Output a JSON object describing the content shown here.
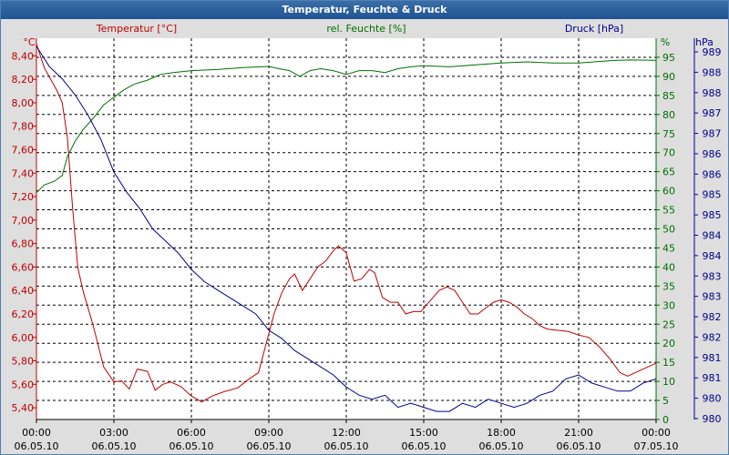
{
  "window": {
    "title": "Temperatur, Feuchte & Druck"
  },
  "colors": {
    "temperature": "#c00000",
    "humidity": "#007000",
    "pressure": "#000090",
    "grid": "#000000",
    "titlebar": "#2a5f9e"
  },
  "chart_data": {
    "type": "line",
    "title": "Temperatur, Feuchte & Druck",
    "grid": true,
    "x": {
      "start": "06.05.10 00:00",
      "end": "07.05.10 00:00",
      "range_hours": [
        0,
        24
      ],
      "tick_hours": [
        0,
        3,
        6,
        9,
        12,
        15,
        18,
        21,
        24
      ],
      "tick_times": [
        "00:00",
        "03:00",
        "06:00",
        "09:00",
        "12:00",
        "15:00",
        "18:00",
        "21:00",
        "00:00"
      ],
      "tick_dates": [
        "06.05.10",
        "06.05.10",
        "06.05.10",
        "06.05.10",
        "06.05.10",
        "06.05.10",
        "06.05.10",
        "06.05.10",
        "07.05.10"
      ]
    },
    "axes": {
      "temperature": {
        "label": "Temperatur [°C]",
        "unit": "°C",
        "range": [
          5.3,
          8.55
        ],
        "ticks": [
          "8,40",
          "8,20",
          "8,00",
          "7,80",
          "7,60",
          "7,40",
          "7,20",
          "7,00",
          "6,80",
          "6,60",
          "6,40",
          "6,20",
          "6,00",
          "5,80",
          "5,60",
          "5,40"
        ]
      },
      "humidity": {
        "label": "rel. Feuchte [%]",
        "unit": "%",
        "range": [
          0,
          100
        ],
        "ticks": [
          "95",
          "90",
          "85",
          "80",
          "75",
          "70",
          "65",
          "60",
          "55",
          "50",
          "45",
          "40",
          "35",
          "30",
          "25",
          "20",
          "15",
          "10",
          "5",
          "0"
        ]
      },
      "pressure": {
        "label": "Druck [hPa]",
        "unit": "hPa",
        "range": [
          979.8,
          989.2
        ],
        "ticks": [
          "989",
          "988",
          "988",
          "987",
          "987",
          "986",
          "986",
          "985",
          "985",
          "984",
          "984",
          "983",
          "983",
          "982",
          "982",
          "981",
          "981",
          "980",
          "980"
        ]
      }
    },
    "series": [
      {
        "name": "Temperatur",
        "axis": "temperature",
        "points": [
          [
            0,
            8.5
          ],
          [
            0.3,
            8.3
          ],
          [
            0.8,
            8.1
          ],
          [
            1.0,
            8.0
          ],
          [
            1.2,
            7.7
          ],
          [
            1.4,
            7.1
          ],
          [
            1.6,
            6.6
          ],
          [
            1.8,
            6.4
          ],
          [
            2.2,
            6.1
          ],
          [
            2.6,
            5.75
          ],
          [
            3.0,
            5.62
          ],
          [
            3.3,
            5.63
          ],
          [
            3.6,
            5.56
          ],
          [
            3.9,
            5.73
          ],
          [
            4.3,
            5.71
          ],
          [
            4.6,
            5.55
          ],
          [
            4.9,
            5.6
          ],
          [
            5.2,
            5.62
          ],
          [
            5.6,
            5.58
          ],
          [
            6.0,
            5.5
          ],
          [
            6.4,
            5.45
          ],
          [
            6.8,
            5.5
          ],
          [
            7.3,
            5.54
          ],
          [
            7.8,
            5.57
          ],
          [
            8.2,
            5.64
          ],
          [
            8.6,
            5.7
          ],
          [
            8.9,
            5.95
          ],
          [
            9.2,
            6.2
          ],
          [
            9.5,
            6.38
          ],
          [
            9.8,
            6.5
          ],
          [
            10.0,
            6.54
          ],
          [
            10.3,
            6.4
          ],
          [
            10.6,
            6.5
          ],
          [
            10.9,
            6.6
          ],
          [
            11.2,
            6.65
          ],
          [
            11.5,
            6.74
          ],
          [
            11.7,
            6.78
          ],
          [
            12.0,
            6.72
          ],
          [
            12.3,
            6.48
          ],
          [
            12.6,
            6.5
          ],
          [
            12.9,
            6.58
          ],
          [
            13.1,
            6.55
          ],
          [
            13.4,
            6.34
          ],
          [
            13.7,
            6.3
          ],
          [
            14.0,
            6.3
          ],
          [
            14.3,
            6.2
          ],
          [
            14.6,
            6.22
          ],
          [
            14.9,
            6.22
          ],
          [
            15.2,
            6.3
          ],
          [
            15.6,
            6.4
          ],
          [
            15.9,
            6.43
          ],
          [
            16.2,
            6.4
          ],
          [
            16.5,
            6.3
          ],
          [
            16.8,
            6.2
          ],
          [
            17.1,
            6.2
          ],
          [
            17.4,
            6.25
          ],
          [
            17.7,
            6.3
          ],
          [
            18.0,
            6.32
          ],
          [
            18.3,
            6.3
          ],
          [
            18.6,
            6.26
          ],
          [
            18.9,
            6.2
          ],
          [
            19.2,
            6.16
          ],
          [
            19.5,
            6.1
          ],
          [
            19.8,
            6.07
          ],
          [
            20.2,
            6.06
          ],
          [
            20.6,
            6.05
          ],
          [
            21.0,
            6.02
          ],
          [
            21.4,
            6.0
          ],
          [
            21.8,
            5.92
          ],
          [
            22.2,
            5.82
          ],
          [
            22.6,
            5.7
          ],
          [
            22.9,
            5.67
          ],
          [
            23.2,
            5.7
          ],
          [
            23.5,
            5.73
          ],
          [
            23.8,
            5.76
          ],
          [
            24,
            5.78
          ]
        ]
      },
      {
        "name": "rel. Feuchte",
        "axis": "humidity",
        "points": [
          [
            0,
            59.5
          ],
          [
            0.3,
            61.5
          ],
          [
            0.7,
            62.5
          ],
          [
            1.0,
            64.0
          ],
          [
            1.2,
            69.0
          ],
          [
            1.5,
            73.0
          ],
          [
            1.8,
            76.0
          ],
          [
            2.2,
            79.0
          ],
          [
            2.6,
            82.5
          ],
          [
            3.0,
            84.5
          ],
          [
            3.4,
            86.5
          ],
          [
            3.8,
            88.0
          ],
          [
            4.3,
            89.0
          ],
          [
            4.8,
            90.5
          ],
          [
            5.3,
            91.0
          ],
          [
            6.0,
            91.5
          ],
          [
            7.0,
            91.8
          ],
          [
            8.0,
            92.3
          ],
          [
            9.0,
            92.6
          ],
          [
            9.4,
            92.0
          ],
          [
            9.8,
            91.5
          ],
          [
            10.2,
            90.0
          ],
          [
            10.6,
            91.5
          ],
          [
            11.0,
            92.0
          ],
          [
            11.5,
            91.5
          ],
          [
            12.0,
            90.5
          ],
          [
            12.5,
            91.5
          ],
          [
            13.0,
            91.5
          ],
          [
            13.5,
            91.0
          ],
          [
            14.0,
            92.0
          ],
          [
            14.5,
            92.5
          ],
          [
            15.0,
            92.8
          ],
          [
            16.0,
            92.5
          ],
          [
            17.0,
            93.0
          ],
          [
            18.0,
            93.5
          ],
          [
            19.0,
            93.8
          ],
          [
            20.0,
            93.5
          ],
          [
            21.0,
            93.5
          ],
          [
            22.0,
            94.0
          ],
          [
            22.5,
            94.2
          ],
          [
            23.0,
            94.3
          ],
          [
            24,
            94.2
          ]
        ]
      },
      {
        "name": "Druck",
        "axis": "pressure",
        "points": [
          [
            0,
            989.0
          ],
          [
            0.5,
            988.5
          ],
          [
            1.0,
            988.2
          ],
          [
            1.5,
            987.8
          ],
          [
            2.0,
            987.3
          ],
          [
            2.5,
            986.7
          ],
          [
            3.0,
            985.9
          ],
          [
            3.5,
            985.4
          ],
          [
            4.0,
            985.0
          ],
          [
            4.5,
            984.5
          ],
          [
            5.0,
            984.2
          ],
          [
            5.5,
            983.9
          ],
          [
            6.0,
            983.5
          ],
          [
            6.5,
            983.2
          ],
          [
            7.0,
            983.0
          ],
          [
            7.5,
            982.8
          ],
          [
            8.0,
            982.6
          ],
          [
            8.5,
            982.4
          ],
          [
            9.0,
            982.0
          ],
          [
            9.5,
            981.8
          ],
          [
            10.0,
            981.5
          ],
          [
            10.5,
            981.3
          ],
          [
            11.0,
            981.1
          ],
          [
            11.5,
            980.9
          ],
          [
            12.0,
            980.6
          ],
          [
            12.5,
            980.4
          ],
          [
            13.0,
            980.3
          ],
          [
            13.5,
            980.4
          ],
          [
            14.0,
            980.1
          ],
          [
            14.5,
            980.2
          ],
          [
            15.0,
            980.1
          ],
          [
            15.5,
            980.0
          ],
          [
            16.0,
            980.0
          ],
          [
            16.5,
            980.2
          ],
          [
            17.0,
            980.1
          ],
          [
            17.5,
            980.3
          ],
          [
            18.0,
            980.2
          ],
          [
            18.5,
            980.1
          ],
          [
            19.0,
            980.2
          ],
          [
            19.5,
            980.4
          ],
          [
            20.0,
            980.5
          ],
          [
            20.5,
            980.8
          ],
          [
            21.0,
            980.9
          ],
          [
            21.5,
            980.7
          ],
          [
            22.0,
            980.6
          ],
          [
            22.5,
            980.5
          ],
          [
            23.0,
            980.5
          ],
          [
            23.5,
            980.7
          ],
          [
            24,
            980.8
          ]
        ]
      }
    ]
  }
}
